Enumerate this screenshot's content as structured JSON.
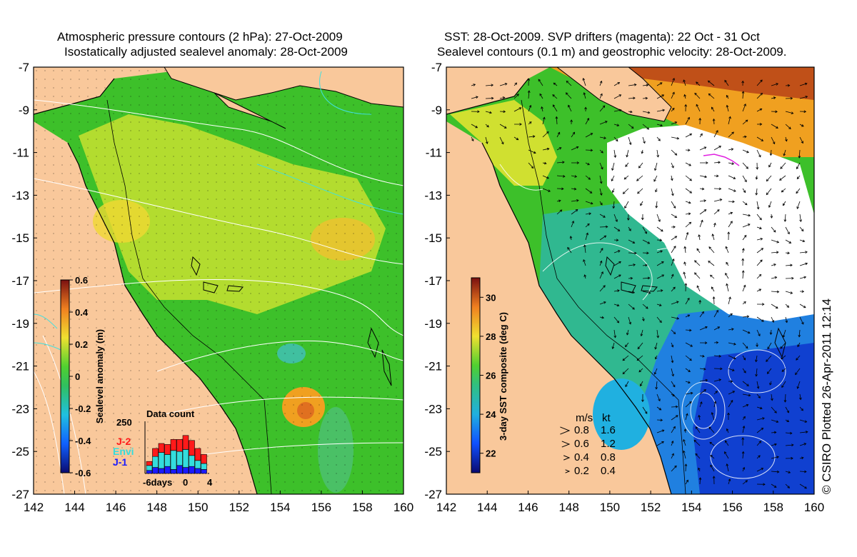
{
  "left_panel": {
    "title_line1": "Atmospheric pressure contours (2 hPa): 27-Oct-2009",
    "title_line2": "Isostatically adjusted sealevel anomaly: 28-Oct-2009",
    "colorbar": {
      "label": "Sealevel anomaly (m)",
      "ticks": [
        "0.6",
        "0.4",
        "0.2",
        "0",
        "-0.2",
        "-0.4",
        "-0.6"
      ],
      "range": [
        -0.6,
        0.6
      ]
    },
    "data_count": {
      "title": "Data count",
      "ymax_label": "250",
      "x_labels": [
        "-6days",
        "0",
        "4"
      ],
      "legend": [
        {
          "name": "J-2",
          "color": "#ff1a1a"
        },
        {
          "name": "Envi",
          "color": "#33dddd"
        },
        {
          "name": "J-1",
          "color": "#1a1aff"
        }
      ],
      "bars": [
        {
          "j1": 15,
          "envi": 25,
          "j2": 20
        },
        {
          "j1": 30,
          "envi": 55,
          "j2": 40
        },
        {
          "j1": 25,
          "envi": 80,
          "j2": 45
        },
        {
          "j1": 35,
          "envi": 60,
          "j2": 50
        },
        {
          "j1": 20,
          "envi": 95,
          "j2": 55
        },
        {
          "j1": 40,
          "envi": 70,
          "j2": 60
        },
        {
          "j1": 30,
          "envi": 90,
          "j2": 70
        },
        {
          "j1": 35,
          "envi": 55,
          "j2": 75
        },
        {
          "j1": 25,
          "envi": 40,
          "j2": 60
        },
        {
          "j1": 20,
          "envi": 30,
          "j2": 45
        }
      ]
    }
  },
  "right_panel": {
    "title_line1": "SST: 28-Oct-2009. SVP drifters (magenta): 22 Oct - 31 Oct",
    "title_line2": "Sealevel contours (0.1 m) and geostrophic velocity: 28-Oct-2009.",
    "colorbar": {
      "label": "3-day SST composite (deg C)",
      "ticks": [
        "30",
        "28",
        "26",
        "24",
        "22"
      ],
      "range": [
        21,
        31
      ]
    },
    "velocity_legend": {
      "header_ms": "m/s",
      "header_kt": "kt",
      "rows": [
        {
          "ms": "0.8",
          "kt": "1.6"
        },
        {
          "ms": "0.6",
          "kt": "1.2"
        },
        {
          "ms": "0.4",
          "kt": "0.8"
        },
        {
          "ms": "0.2",
          "kt": "0.4"
        }
      ]
    }
  },
  "axes": {
    "lat_labels": [
      "-7",
      "-9",
      "-11",
      "-13",
      "-15",
      "-17",
      "-19",
      "-21",
      "-23",
      "-25",
      "-27"
    ],
    "lon_labels": [
      "142",
      "144",
      "146",
      "148",
      "150",
      "152",
      "154",
      "156",
      "158",
      "160"
    ],
    "lon_range": [
      142,
      160
    ],
    "lat_range": [
      -27,
      -7
    ]
  },
  "credit": "© CSIRO Plotted 26-Apr-2011 12:14",
  "colors": {
    "land": "#f9c89b",
    "ocean_green": "#3dc02a",
    "ocean_yellow": "#f0d832",
    "cloud": "#ffffff"
  }
}
